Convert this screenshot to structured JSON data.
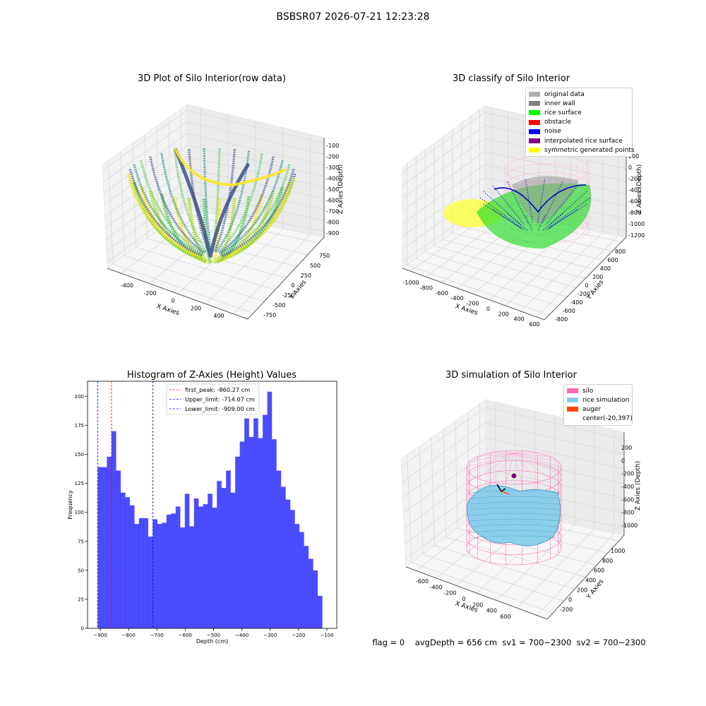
{
  "suptitle": "BSBSR07 2026-07-21 12:23:28",
  "panel1": {
    "title": "3D Plot of Silo Interior(row data)",
    "xlabel": "X Axies",
    "ylabel": "Y Axies",
    "zlabel": "Z Axies (Depth)",
    "xticks": [
      "-400",
      "-200",
      "0",
      "200",
      "400"
    ],
    "yticks": [
      "750",
      "500",
      "250",
      "0",
      "-250",
      "-500",
      "-750"
    ],
    "zticks": [
      "-100",
      "-200",
      "-300",
      "-400",
      "-500",
      "-600",
      "-700",
      "-800",
      "-900"
    ]
  },
  "panel2": {
    "title": "3D classify of Silo Interior",
    "xlabel": "X Axies",
    "ylabel": "Y Axies",
    "zlabel": "Z Axies (Depth)",
    "xticks": [
      "-1000",
      "-800",
      "-600",
      "-400",
      "-200",
      "0",
      "200",
      "400",
      "600"
    ],
    "yticks": [
      "800",
      "600",
      "400",
      "200",
      "0",
      "-200",
      "-400",
      "-600",
      "-800"
    ],
    "zticks": [
      "200",
      "0",
      "-200",
      "-400",
      "-600",
      "-800",
      "-1000",
      "-1200"
    ],
    "legend": [
      {
        "label": "original data",
        "color": "#b0b0b0"
      },
      {
        "label": "inner wall",
        "color": "#808080"
      },
      {
        "label": "rice surface",
        "color": "#00ff00"
      },
      {
        "label": "obstacle",
        "color": "#ff0000"
      },
      {
        "label": "noise",
        "color": "#0000ff"
      },
      {
        "label": "interpolated rice surface",
        "color": "#800080"
      },
      {
        "label": "symmetric generated points",
        "color": "#ffff00"
      }
    ]
  },
  "panel3": {
    "title": "3D simulation of Silo Interior",
    "xlabel": "X Axies",
    "ylabel": "Y Axies",
    "zlabel": "Z Axies (Depth)",
    "xticks": [
      "-600",
      "-400",
      "-200",
      "0",
      "200",
      "400",
      "600"
    ],
    "yticks": [
      "1000",
      "800",
      "600",
      "400",
      "200",
      "0",
      "-200"
    ],
    "zticks": [
      "200",
      "0",
      "-200",
      "-400",
      "-600",
      "-800",
      "-1000"
    ],
    "legend": [
      {
        "label": "silo",
        "color": "#ff69b4"
      },
      {
        "label": "rice simulation",
        "color": "#87ceeb"
      },
      {
        "label": "auger",
        "color": "#ff4500"
      },
      {
        "label": "center(-20,397)",
        "color": ""
      }
    ]
  },
  "status": {
    "flag": "flag = 0",
    "avgdepth": "avgDepth = 656 cm",
    "sv1": "sv1 = 700~2300",
    "sv2": "sv2 = 700~2300"
  },
  "chart_data": {
    "type": "bar",
    "title": "Histogram of Z-Axies (Height) Values",
    "xlabel": "Depth (cm)",
    "ylabel": "Frequency",
    "xlim": [
      -945,
      -65
    ],
    "ylim": [
      0,
      213
    ],
    "xticks": [
      -900,
      -800,
      -700,
      -600,
      -500,
      -400,
      -300,
      -200,
      -100
    ],
    "yticks": [
      0,
      25,
      50,
      75,
      100,
      125,
      150,
      175,
      200
    ],
    "bar_color": "#0000ff",
    "bin_start": -909,
    "bin_width": 16.18,
    "values": [
      139,
      139,
      148,
      170,
      136,
      117,
      113,
      106,
      90,
      95,
      95,
      79,
      94,
      90,
      91,
      98,
      99,
      105,
      87,
      116,
      88,
      112,
      105,
      107,
      116,
      104,
      127,
      121,
      136,
      117,
      148,
      161,
      181,
      165,
      181,
      164,
      184,
      204,
      163,
      136,
      122,
      111,
      102,
      90,
      83,
      71,
      60,
      50,
      28
    ],
    "vlines": [
      {
        "label": "first_peak: -860.27 cm",
        "x": -860.27,
        "color": "#ff0000"
      },
      {
        "label": "Upper_limit: -714.07 cm",
        "x": -714.07,
        "color": "#0000ff"
      },
      {
        "label": "Lower_limit: -909.00 cm",
        "x": -909.0,
        "color": "#0000ff"
      }
    ],
    "legend_position": "upper center"
  }
}
